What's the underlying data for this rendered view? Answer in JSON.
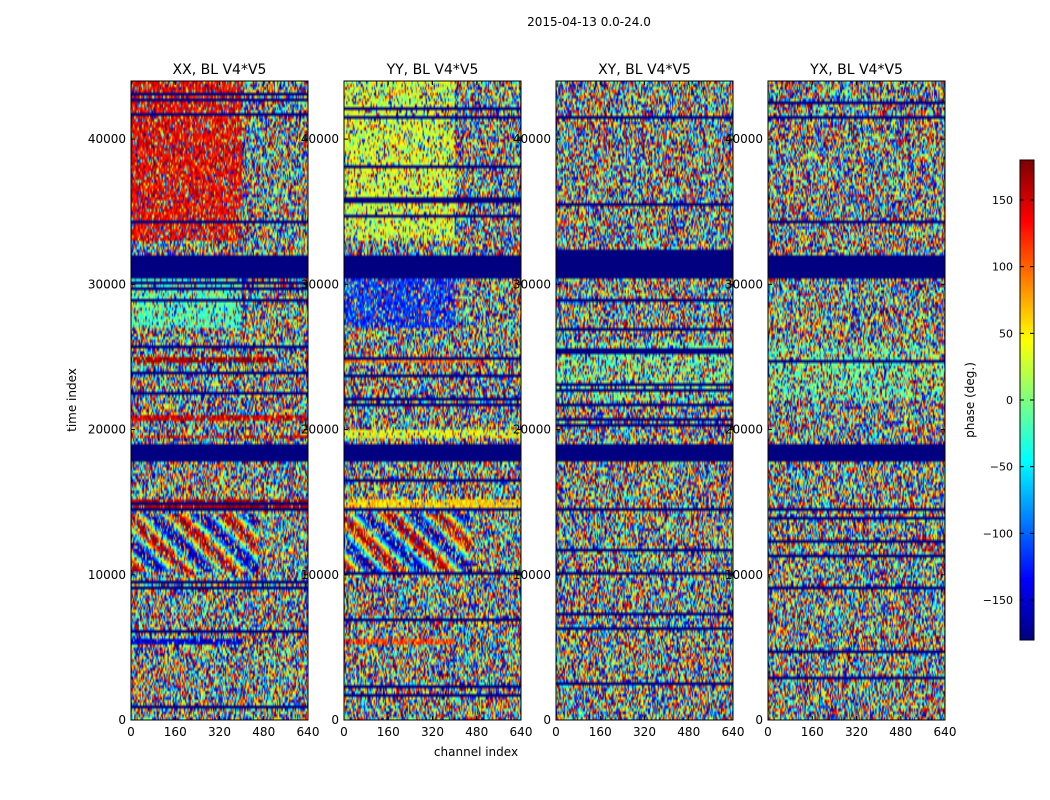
{
  "figure": {
    "suptitle": "2015-04-13 0.0-24.0",
    "xlabel": "channel index",
    "ylabel": "time index",
    "colorbar_label": "phase (deg.)"
  },
  "chart_data": {
    "type": "heatmap",
    "title": "2015-04-13 0.0-24.0",
    "xlabel": "channel index",
    "ylabel": "time index",
    "xlim": [
      0,
      640
    ],
    "ylim": [
      0,
      44000
    ],
    "x_ticks": [
      0,
      160,
      320,
      480,
      640
    ],
    "y_ticks": [
      0,
      10000,
      20000,
      30000,
      40000
    ],
    "colormap": "jet",
    "colorbar": {
      "label": "phase (deg.)",
      "range": [
        -180,
        180
      ],
      "ticks": [
        -150,
        -100,
        -50,
        0,
        50,
        100,
        150
      ],
      "tick_labels": [
        "−150",
        "−100",
        "−50",
        "0",
        "50",
        "100",
        "150"
      ]
    },
    "panels": [
      {
        "title": "XX, BL V4*V5",
        "pol": "XX",
        "bias": [
          {
            "t0": 33000,
            "t1": 44000,
            "c0": 0,
            "c1": 400,
            "phase": 140,
            "strength": 0.7
          },
          {
            "t0": 27000,
            "t1": 30500,
            "c0": 0,
            "c1": 400,
            "phase": -20,
            "strength": 0.6
          },
          {
            "t0": 14500,
            "t1": 15300,
            "c0": 0,
            "c1": 640,
            "phase": 165,
            "strength": 0.85
          },
          {
            "t0": 20600,
            "t1": 20900,
            "c0": 0,
            "c1": 640,
            "phase": 150,
            "strength": 0.85
          },
          {
            "t0": 19400,
            "t1": 19600,
            "c0": 0,
            "c1": 640,
            "phase": 150,
            "strength": 0.75
          },
          {
            "t0": 24700,
            "t1": 24900,
            "c0": 0,
            "c1": 520,
            "phase": 170,
            "strength": 0.85
          },
          {
            "t0": 5300,
            "t1": 5500,
            "c0": 0,
            "c1": 400,
            "phase": -150,
            "strength": 0.85
          }
        ]
      },
      {
        "title": "YY, BL V4*V5",
        "pol": "YY",
        "bias": [
          {
            "t0": 33000,
            "t1": 44000,
            "c0": 0,
            "c1": 400,
            "phase": 30,
            "strength": 0.6
          },
          {
            "t0": 27000,
            "t1": 30500,
            "c0": 0,
            "c1": 400,
            "phase": -120,
            "strength": 0.65
          },
          {
            "t0": 14500,
            "t1": 15300,
            "c0": 0,
            "c1": 640,
            "phase": 60,
            "strength": 0.85
          },
          {
            "t0": 19400,
            "t1": 19900,
            "c0": 0,
            "c1": 640,
            "phase": 40,
            "strength": 0.75
          },
          {
            "t0": 24700,
            "t1": 24900,
            "c0": 0,
            "c1": 520,
            "phase": 100,
            "strength": 0.8
          },
          {
            "t0": 5300,
            "t1": 5500,
            "c0": 0,
            "c1": 400,
            "phase": 110,
            "strength": 0.8
          }
        ]
      },
      {
        "title": "XY, BL V4*V5",
        "pol": "XY",
        "bias": [
          {
            "t0": 22000,
            "t1": 26000,
            "c0": 0,
            "c1": 640,
            "phase": -10,
            "strength": 0.35
          }
        ]
      },
      {
        "title": "YX, BL V4*V5",
        "pol": "YX",
        "bias": [
          {
            "t0": 22000,
            "t1": 26000,
            "c0": 0,
            "c1": 640,
            "phase": -10,
            "strength": 0.35
          }
        ]
      }
    ],
    "flagged_time_ranges": [
      [
        30500,
        32000
      ],
      [
        17800,
        19000
      ],
      [
        14300,
        14600
      ],
      [
        44000,
        44000
      ]
    ]
  }
}
